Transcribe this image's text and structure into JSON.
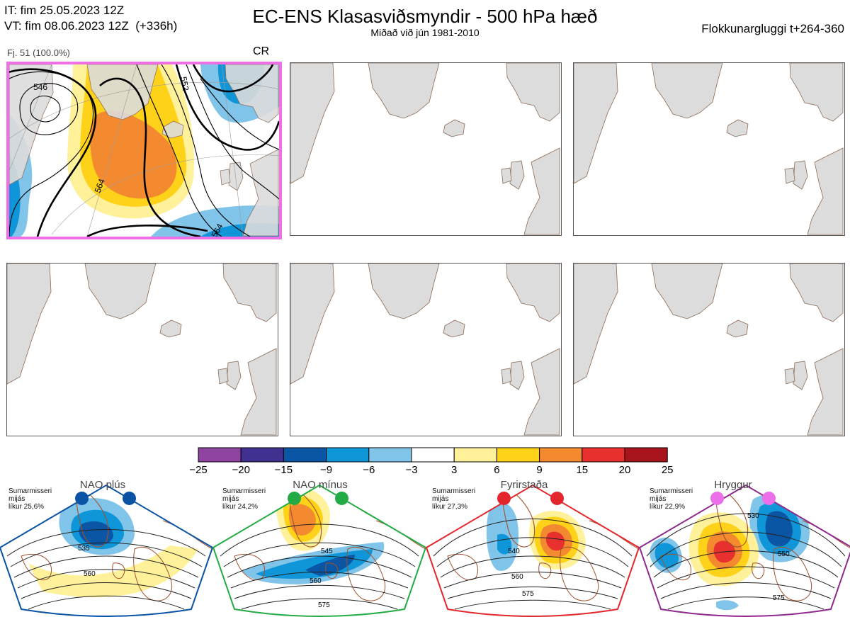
{
  "header": {
    "it_line": "IT: fim 25.05.2023 12Z",
    "vt_line": "VT: fim 08.06.2023 12Z  (+336h)",
    "title": "EC-ENS Klasasviðsmyndir - 500 hPa hæð",
    "subtitle": "Miðað við jún 1981-2010",
    "window": "Flokkunargluggi t+264-360"
  },
  "panel1": {
    "label": "Fj. 51 (100.0%)",
    "tag": "CR",
    "contours": [
      "546",
      "552",
      "564",
      "564"
    ]
  },
  "colorbar": {
    "ticks": [
      "−25",
      "−20",
      "−15",
      "−9",
      "−6",
      "−3",
      "3",
      "6",
      "9",
      "15",
      "20",
      "25"
    ],
    "colors": [
      "#8e44a0",
      "#40308f",
      "#0b55a5",
      "#0f96d8",
      "#80c4ea",
      "#ffffff",
      "#fff09a",
      "#ffd21a",
      "#f48a30",
      "#e8302e",
      "#a8141b"
    ]
  },
  "regimes": [
    {
      "name": "NAO plús",
      "season": "Sumarmisseri",
      "scope": "mijás",
      "prob": "líkur 25,6%",
      "color": "#0a52a3",
      "contours": [
        "535",
        "560"
      ]
    },
    {
      "name": "NAO mínus",
      "season": "Sumarmisseri",
      "scope": "mijás",
      "prob": "líkur 24,2%",
      "color": "#22aa44",
      "contours": [
        "545",
        "560",
        "575"
      ]
    },
    {
      "name": "Fyrirstaða",
      "season": "Sumarmisseri",
      "scope": "mijás",
      "prob": "líkur 27,3%",
      "color": "#e3262b",
      "contours": [
        "540",
        "560",
        "575"
      ]
    },
    {
      "name": "Hryggur",
      "season": "Sumarmisseri",
      "scope": "mijás",
      "prob": "líkur 22,9%",
      "color": "#ea6fe8",
      "contours": [
        "530",
        "550",
        "575"
      ]
    }
  ]
}
